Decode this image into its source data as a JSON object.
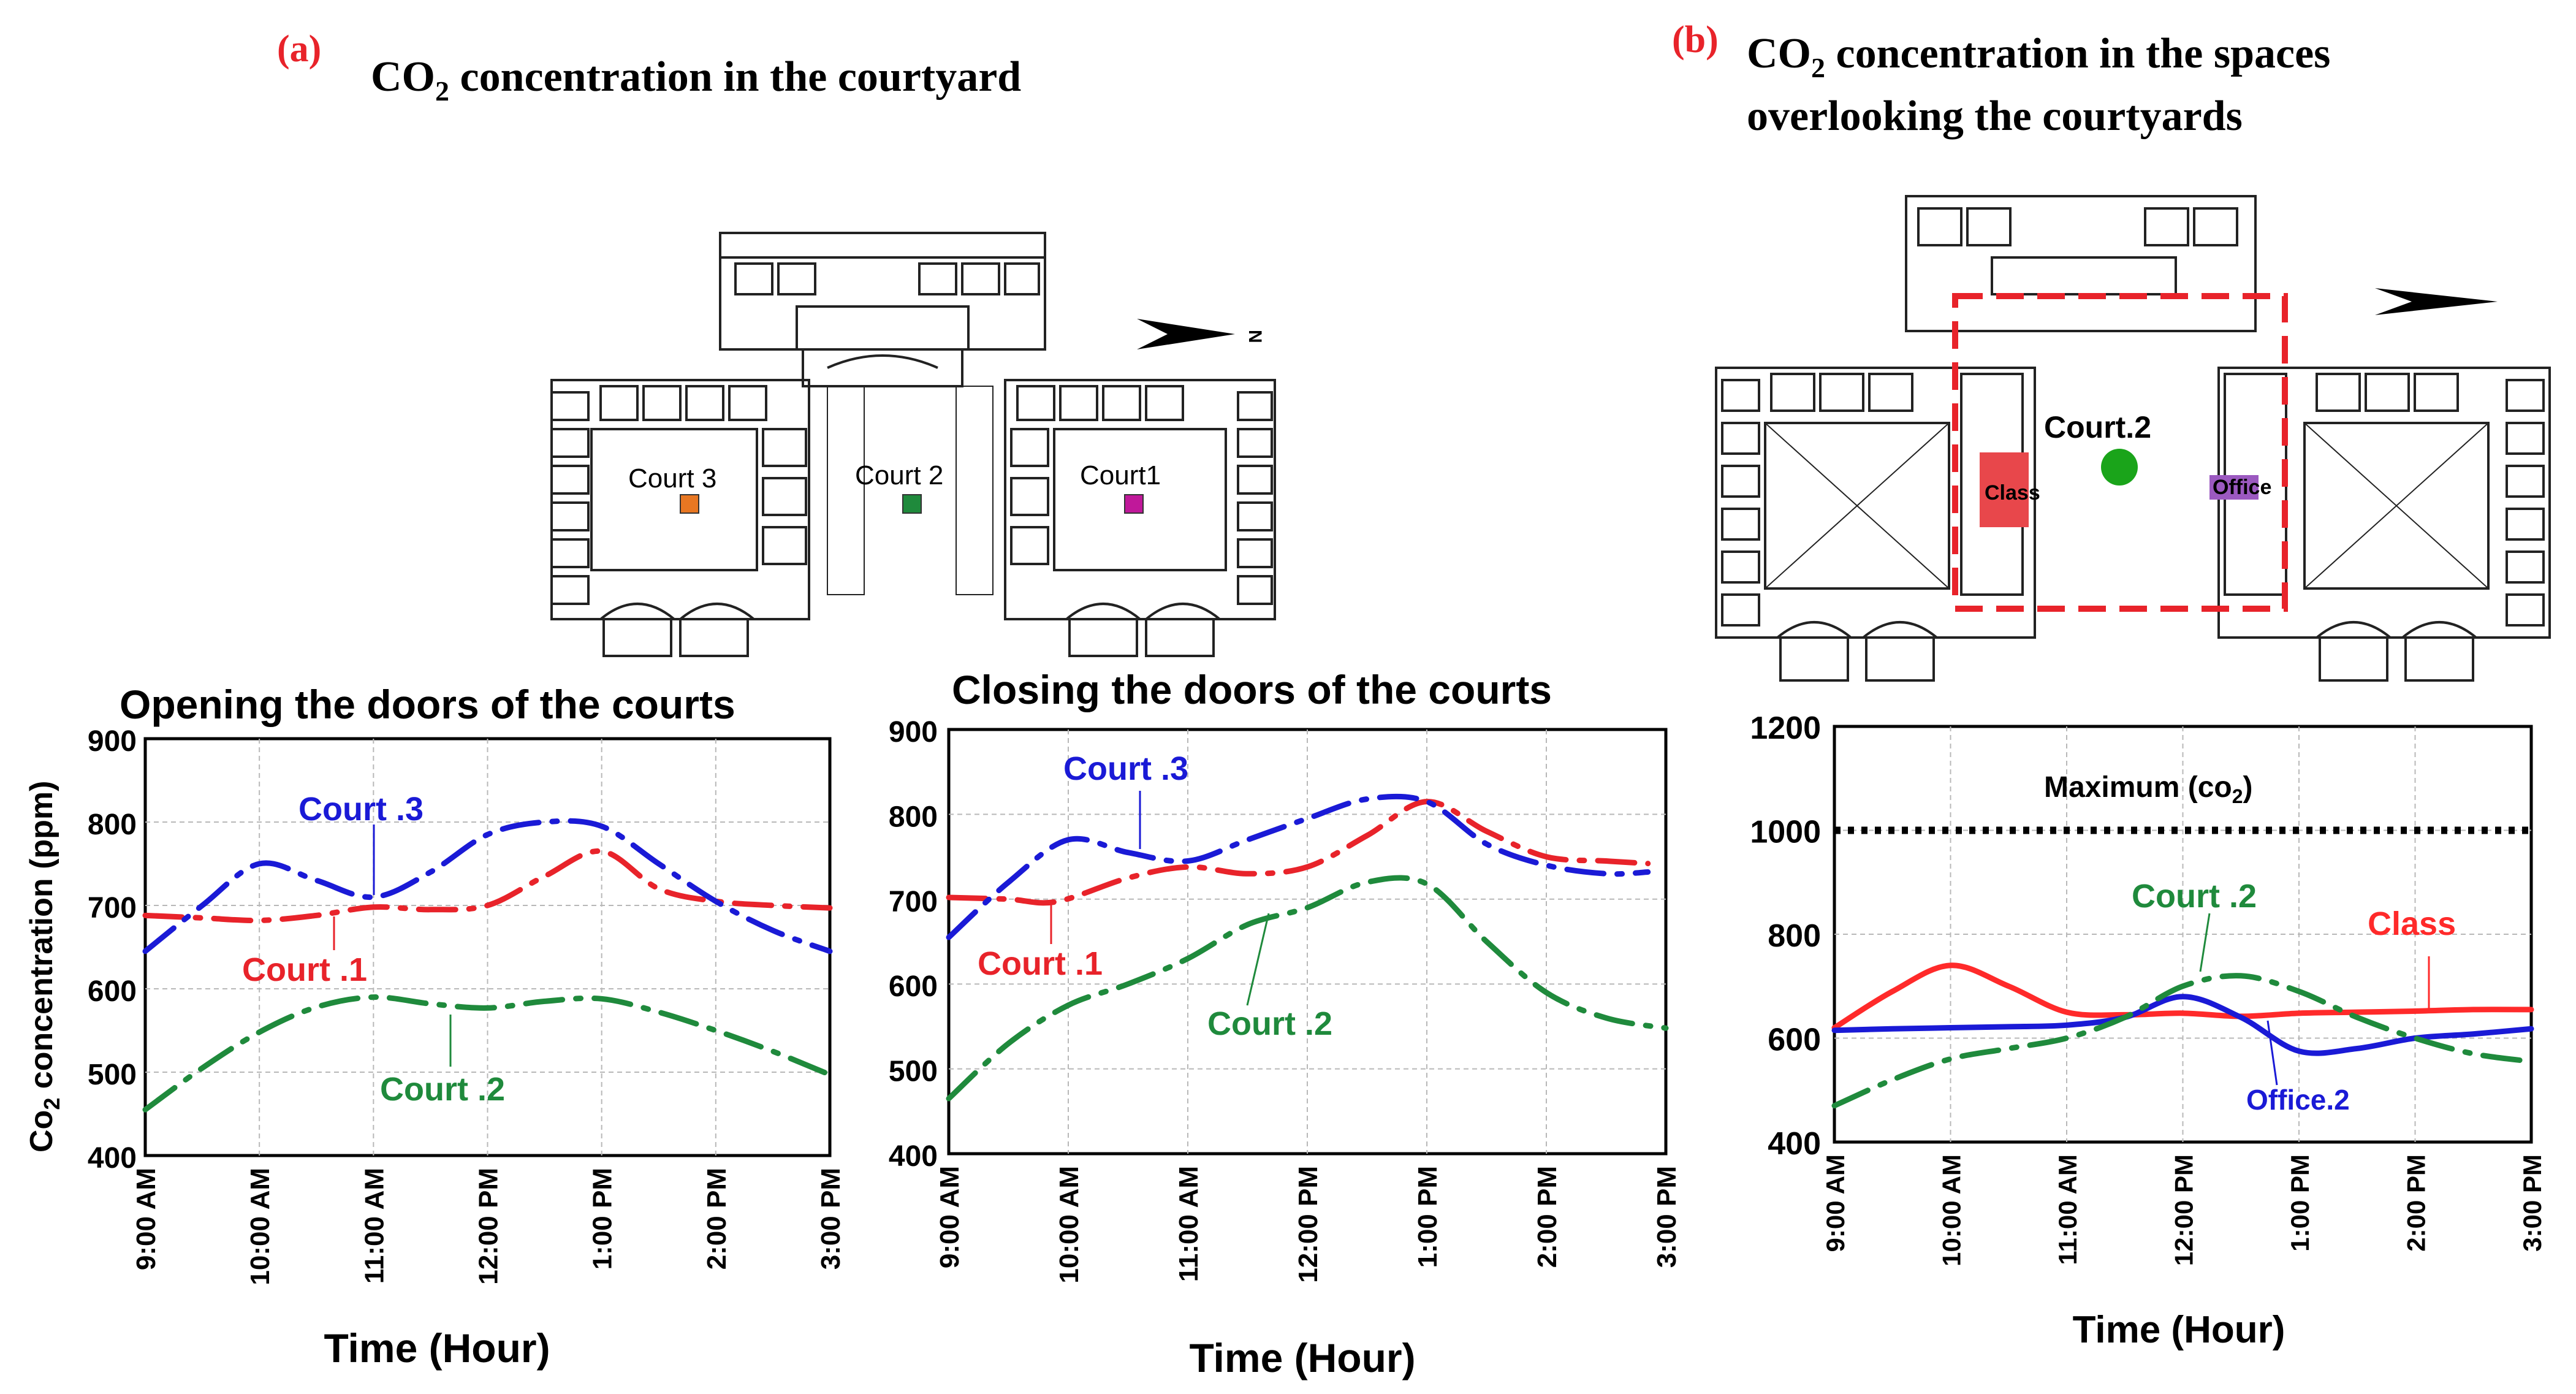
{
  "panel_a": {
    "label": "(a)",
    "title_main": "CO",
    "title_sub": "2",
    "title_rest": " concentration in the courtyard",
    "plan": {
      "court3_label": "Court 3",
      "court2_label": "Court 2",
      "court1_label": "Court1",
      "north_label": "N",
      "court3_color": "#e87722",
      "court2_color": "#1f8a3c",
      "court1_color": "#c0189a"
    }
  },
  "panel_b": {
    "label": "(b)",
    "title_line1_main": "CO",
    "title_line1_sub": "2",
    "title_line1_rest": " concentration in the spaces",
    "title_line2": "overlooking the courtyards",
    "plan": {
      "court_label": "Court.2",
      "class_label": "Class",
      "office_label": "Office",
      "court_color": "#1aa41a",
      "class_color": "#e8474b",
      "office_color": "#9b59c0",
      "boundary_color": "#e8232a"
    }
  },
  "chart_data": [
    {
      "type": "line",
      "title": "Opening the doors of the courts",
      "xlabel": "Time (Hour)",
      "ylabel_main": "Co",
      "ylabel_sub": "2",
      "ylabel_rest": " concentration (ppm)",
      "categories": [
        "9:00 AM",
        "10:00 AM",
        "11:00 AM",
        "12:00 PM",
        "1:00 PM",
        "2:00 PM",
        "3:00 PM"
      ],
      "ylim": [
        400,
        900
      ],
      "yticks": [
        400,
        500,
        600,
        700,
        800,
        900
      ],
      "grid": true,
      "series": [
        {
          "name": "Court .1",
          "color": "#e8232a",
          "dash": "dashdot",
          "points": [
            [
              0,
              688
            ],
            [
              0.5,
              685
            ],
            [
              1,
              682
            ],
            [
              1.5,
              688
            ],
            [
              2,
              698
            ],
            [
              2.5,
              695
            ],
            [
              3,
              700
            ],
            [
              3.5,
              735
            ],
            [
              4,
              765
            ],
            [
              4.5,
              720
            ],
            [
              5,
              705
            ],
            [
              5.5,
              700
            ],
            [
              6,
              697
            ]
          ]
        },
        {
          "name": "Court .2",
          "color": "#1f8a3c",
          "dash": "dashdot",
          "points": [
            [
              0,
              455
            ],
            [
              0.5,
              505
            ],
            [
              1,
              548
            ],
            [
              1.5,
              578
            ],
            [
              2,
              590
            ],
            [
              2.5,
              582
            ],
            [
              3,
              577
            ],
            [
              3.5,
              585
            ],
            [
              4,
              588
            ],
            [
              4.5,
              572
            ],
            [
              5,
              550
            ],
            [
              5.5,
              525
            ],
            [
              6,
              497
            ]
          ]
        },
        {
          "name": "Court .3",
          "color": "#1a1ad6",
          "dash": "dashdot",
          "points": [
            [
              0,
              645
            ],
            [
              0.5,
              700
            ],
            [
              1,
              750
            ],
            [
              1.5,
              730
            ],
            [
              2,
              710
            ],
            [
              2.5,
              740
            ],
            [
              3,
              785
            ],
            [
              3.5,
              800
            ],
            [
              4,
              795
            ],
            [
              4.5,
              750
            ],
            [
              5,
              705
            ],
            [
              5.5,
              670
            ],
            [
              6,
              645
            ]
          ]
        }
      ],
      "annotations": [
        {
          "text": "Court .3",
          "series": "Court .3"
        },
        {
          "text": "Court .1",
          "series": "Court .1"
        },
        {
          "text": "Court .2",
          "series": "Court .2"
        }
      ]
    },
    {
      "type": "line",
      "title": "Closing the doors of the courts",
      "xlabel": "Time (Hour)",
      "categories": [
        "9:00 AM",
        "10:00 AM",
        "11:00 AM",
        "12:00 PM",
        "1:00 PM",
        "2:00 PM",
        "3:00 PM"
      ],
      "ylim": [
        400,
        900
      ],
      "yticks": [
        400,
        500,
        600,
        700,
        800,
        900
      ],
      "grid": true,
      "series": [
        {
          "name": "Court .1",
          "color": "#e8232a",
          "dash": "dashdot",
          "points": [
            [
              0,
              702
            ],
            [
              0.5,
              700
            ],
            [
              0.9,
              697
            ],
            [
              1.5,
              725
            ],
            [
              2,
              738
            ],
            [
              2.5,
              730
            ],
            [
              3,
              738
            ],
            [
              3.5,
              775
            ],
            [
              4,
              815
            ],
            [
              4.5,
              780
            ],
            [
              5,
              750
            ],
            [
              5.5,
              745
            ],
            [
              5.85,
              742
            ]
          ]
        },
        {
          "name": "Court .2",
          "color": "#1f8a3c",
          "dash": "dashdot",
          "points": [
            [
              0,
              465
            ],
            [
              0.5,
              530
            ],
            [
              1,
              575
            ],
            [
              1.5,
              600
            ],
            [
              2,
              630
            ],
            [
              2.5,
              670
            ],
            [
              3,
              690
            ],
            [
              3.5,
              720
            ],
            [
              4,
              718
            ],
            [
              4.5,
              650
            ],
            [
              5,
              590
            ],
            [
              5.5,
              560
            ],
            [
              6,
              548
            ]
          ]
        },
        {
          "name": "Court .3",
          "color": "#1a1ad6",
          "dash": "dashdot",
          "points": [
            [
              0,
              655
            ],
            [
              0.5,
              720
            ],
            [
              1,
              770
            ],
            [
              1.5,
              755
            ],
            [
              2,
              745
            ],
            [
              2.5,
              770
            ],
            [
              3,
              795
            ],
            [
              3.5,
              818
            ],
            [
              4,
              815
            ],
            [
              4.5,
              765
            ],
            [
              5,
              740
            ],
            [
              5.5,
              730
            ],
            [
              5.85,
              732
            ]
          ]
        }
      ],
      "annotations": [
        {
          "text": "Court .3",
          "series": "Court .3"
        },
        {
          "text": "Court .1",
          "series": "Court .1"
        },
        {
          "text": "Court .2",
          "series": "Court .2"
        }
      ]
    },
    {
      "type": "line",
      "xlabel": "Time (Hour)",
      "categories": [
        "9:00 AM",
        "10:00 AM",
        "11:00 AM",
        "12:00 PM",
        "1:00 PM",
        "2:00 PM",
        "3:00 PM"
      ],
      "ylim": [
        400,
        1200
      ],
      "yticks": [
        400,
        600,
        800,
        1000,
        1200
      ],
      "grid": true,
      "series": [
        {
          "name": "Class",
          "color": "#ff2a2a",
          "dash": "solid",
          "points": [
            [
              0,
              620
            ],
            [
              0.5,
              690
            ],
            [
              1,
              740
            ],
            [
              1.5,
              700
            ],
            [
              2,
              650
            ],
            [
              2.5,
              645
            ],
            [
              3,
              648
            ],
            [
              3.5,
              642
            ],
            [
              4,
              648
            ],
            [
              4.5,
              650
            ],
            [
              5,
              652
            ],
            [
              5.5,
              655
            ],
            [
              6,
              655
            ]
          ]
        },
        {
          "name": "Office.2",
          "color": "#1a1ad6",
          "dash": "solid",
          "points": [
            [
              0,
              615
            ],
            [
              0.5,
              618
            ],
            [
              1,
              620
            ],
            [
              1.5,
              622
            ],
            [
              2,
              625
            ],
            [
              2.5,
              640
            ],
            [
              3,
              680
            ],
            [
              3.5,
              640
            ],
            [
              4,
              575
            ],
            [
              4.5,
              580
            ],
            [
              5,
              600
            ],
            [
              5.5,
              608
            ],
            [
              6,
              618
            ]
          ]
        },
        {
          "name": "Court .2",
          "color": "#1f8a3c",
          "dash": "dashdot",
          "points": [
            [
              0,
              470
            ],
            [
              0.5,
              520
            ],
            [
              1,
              560
            ],
            [
              1.5,
              580
            ],
            [
              2,
              600
            ],
            [
              2.5,
              640
            ],
            [
              3,
              700
            ],
            [
              3.5,
              720
            ],
            [
              4,
              690
            ],
            [
              4.5,
              640
            ],
            [
              5,
              600
            ],
            [
              5.5,
              570
            ],
            [
              6,
              555
            ]
          ]
        }
      ],
      "reference_line": {
        "label_main": "Maximum (co",
        "label_sub": "2",
        "label_rest": ")",
        "value": 1000,
        "color": "#000000"
      },
      "annotations": [
        {
          "text": "Court .2",
          "series": "Court .2"
        },
        {
          "text": "Class",
          "series": "Class"
        },
        {
          "text": "Office.2",
          "series": "Office.2"
        }
      ]
    }
  ]
}
